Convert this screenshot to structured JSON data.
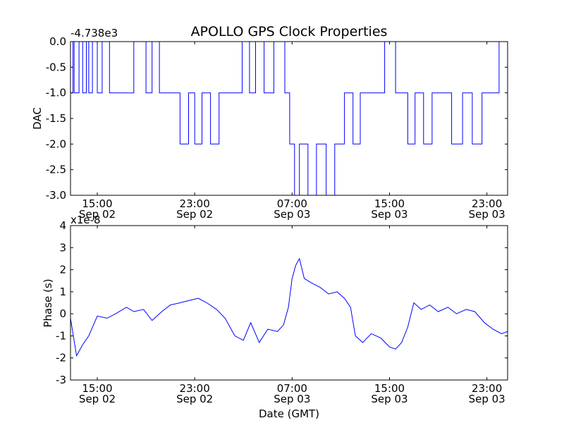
{
  "chart_data": {
    "title": "APOLLO GPS Clock Properties",
    "xlabel": "Date (GMT)",
    "x_tick_labels": [
      {
        "time": "15:00",
        "date": "Sep 02"
      },
      {
        "time": "23:00",
        "date": "Sep 02"
      },
      {
        "time": "07:00",
        "date": "Sep 03"
      },
      {
        "time": "15:00",
        "date": "Sep 03"
      },
      {
        "time": "23:00",
        "date": "Sep 03"
      }
    ],
    "x_tick_hours": [
      15,
      23,
      31,
      39,
      47
    ],
    "x_range_hours": [
      12.8,
      48.7
    ],
    "line_color": "#0000ff",
    "panels": [
      {
        "type": "line",
        "ylabel": "DAC",
        "offset_text": "-4.738e3",
        "ylim": [
          -3.0,
          0.0
        ],
        "y_ticks": [
          0.0,
          -0.5,
          -1.0,
          -1.5,
          -2.0,
          -2.5,
          -3.0
        ],
        "y_tick_labels": [
          "0.0",
          "-0.5",
          "-1.0",
          "-1.5",
          "-2.0",
          "-2.5",
          "-3.0"
        ],
        "series": [
          {
            "x_hours": [
              12.8,
              13.0,
              13.1,
              13.5,
              13.8,
              14.1,
              14.3,
              14.6,
              15.0,
              15.4,
              16.0,
              17.5,
              18.0,
              19.0,
              19.5,
              20.1,
              21.0,
              21.8,
              22.5,
              23.0,
              23.6,
              24.3,
              25.0,
              26.0,
              26.9,
              27.5,
              28.0,
              28.7,
              29.5,
              30.4,
              30.8,
              31.2,
              31.6,
              32.3,
              33.0,
              33.8,
              34.5,
              35.3,
              36.0,
              36.6,
              37.5,
              38.6,
              39.5,
              39.9,
              40.5,
              41.1,
              41.8,
              42.5,
              43.3,
              44.1,
              45.0,
              45.8,
              46.6,
              47.3,
              48.0,
              48.7
            ],
            "y": [
              -1,
              0,
              -1,
              0,
              -1,
              0,
              -1,
              0,
              -1,
              0,
              -1,
              -1,
              0,
              -1,
              0,
              -1,
              -1,
              -2,
              -1,
              -2,
              -1,
              -2,
              -1,
              -1,
              0,
              -1,
              0,
              -1,
              0,
              -1,
              -2,
              -3,
              -2,
              -3,
              -2,
              -3,
              -2,
              -1,
              -2,
              -1,
              -1,
              0,
              -1,
              -1,
              -2,
              -1,
              -2,
              -1,
              -1,
              -2,
              -1,
              -2,
              -1,
              -1,
              0,
              -1
            ]
          }
        ]
      },
      {
        "type": "line",
        "ylabel": "Phase (s)",
        "offset_text": "x1e-8",
        "ylim": [
          -3,
          4
        ],
        "y_ticks": [
          4,
          3,
          2,
          1,
          0,
          -1,
          -2,
          -3
        ],
        "y_tick_labels": [
          "4",
          "3",
          "2",
          "1",
          "0",
          "-1",
          "-2",
          "-3"
        ],
        "series": [
          {
            "x_hours": [
              12.8,
              13.3,
              13.8,
              14.3,
              15.0,
              15.8,
              16.5,
              17.4,
              18.0,
              18.8,
              19.5,
              20.3,
              21.0,
              21.8,
              22.5,
              23.3,
              24.0,
              24.8,
              25.5,
              26.3,
              27.0,
              27.6,
              28.3,
              29.0,
              29.8,
              30.3,
              30.7,
              31.0,
              31.3,
              31.6,
              32.0,
              32.6,
              33.3,
              34.0,
              34.7,
              35.3,
              35.8,
              36.2,
              36.8,
              37.5,
              38.3,
              39.0,
              39.5,
              40.0,
              40.5,
              41.0,
              41.6,
              42.3,
              43.0,
              43.8,
              44.5,
              45.3,
              46.0,
              46.8,
              47.5,
              48.2,
              48.7
            ],
            "y": [
              -0.2,
              -1.9,
              -1.4,
              -1.0,
              -0.1,
              -0.2,
              0.0,
              0.3,
              0.1,
              0.2,
              -0.3,
              0.1,
              0.4,
              0.5,
              0.6,
              0.7,
              0.5,
              0.2,
              -0.2,
              -1.0,
              -1.2,
              -0.4,
              -1.3,
              -0.7,
              -0.8,
              -0.5,
              0.3,
              1.6,
              2.2,
              2.5,
              1.6,
              1.4,
              1.2,
              0.9,
              1.0,
              0.7,
              0.3,
              -1.0,
              -1.3,
              -0.9,
              -1.1,
              -1.5,
              -1.6,
              -1.3,
              -0.6,
              0.5,
              0.2,
              0.4,
              0.1,
              0.3,
              0.0,
              0.2,
              0.1,
              -0.4,
              -0.7,
              -0.9,
              -0.8
            ]
          }
        ]
      }
    ]
  }
}
